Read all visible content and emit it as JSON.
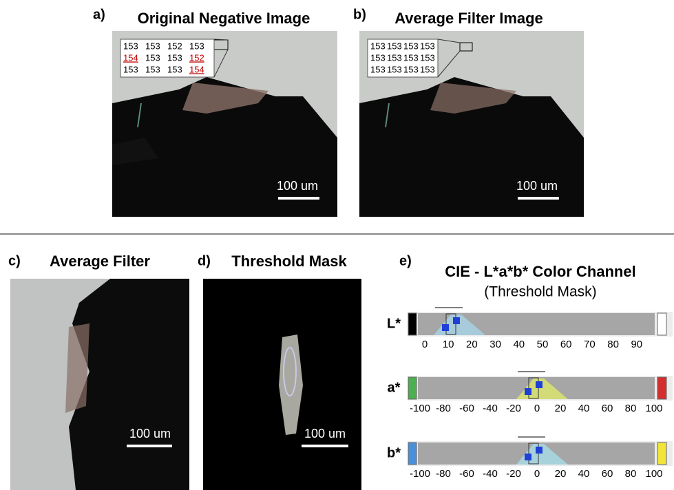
{
  "panels": {
    "a": {
      "label": "a)",
      "title": "Original Negative Image",
      "inset": [
        [
          "153",
          "153",
          "152",
          "153"
        ],
        [
          "154",
          "153",
          "153",
          "152"
        ],
        [
          "153",
          "153",
          "153",
          "154"
        ]
      ],
      "scale": "100 um"
    },
    "b": {
      "label": "b)",
      "title": "Average Filter Image",
      "inset": [
        [
          "153",
          "153",
          "153",
          "153"
        ],
        [
          "153",
          "153",
          "153",
          "153"
        ],
        [
          "153",
          "153",
          "153",
          "153"
        ]
      ],
      "scale": "100 um"
    },
    "c": {
      "label": "c)",
      "title": "Average Filter",
      "scale": "100 um"
    },
    "d": {
      "label": "d)",
      "title": "Threshold Mask",
      "scale": "100 um"
    },
    "e": {
      "label": "e)",
      "title": "CIE - L*a*b* Color Channel",
      "subtitle": "(Threshold Mask)",
      "channels": [
        {
          "name": "L*",
          "ticks": [
            0,
            10,
            20,
            30,
            40,
            50,
            60,
            70,
            80,
            90
          ]
        },
        {
          "name": "a*",
          "ticks": [
            -100,
            -80,
            -60,
            -40,
            -20,
            0,
            20,
            40,
            60,
            80,
            100
          ]
        },
        {
          "name": "b*",
          "ticks": [
            -100,
            -80,
            -60,
            -40,
            -20,
            0,
            20,
            40,
            60,
            80,
            100
          ]
        }
      ]
    }
  }
}
